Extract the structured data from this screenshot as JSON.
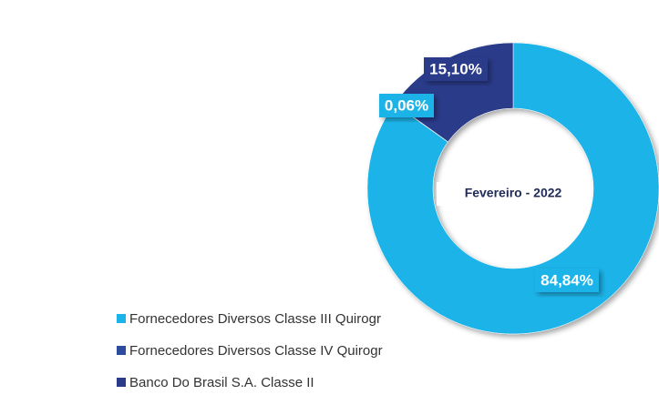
{
  "chart_data": {
    "type": "pie",
    "center_label": "Fevereiro - 2022",
    "categories": [
      "Fornecedores Diversos Classe III Quirogr",
      "Fornecedores Diversos Classe IV Quirogr",
      "Banco Do Brasil S.A. Classe II"
    ],
    "values": [
      84.84,
      0.06,
      15.1
    ],
    "value_labels": [
      "84,84%",
      "0,06%",
      "15,10%"
    ],
    "colors": [
      "#1cb4e8",
      "#2c4c9e",
      "#2b3b8a"
    ]
  }
}
